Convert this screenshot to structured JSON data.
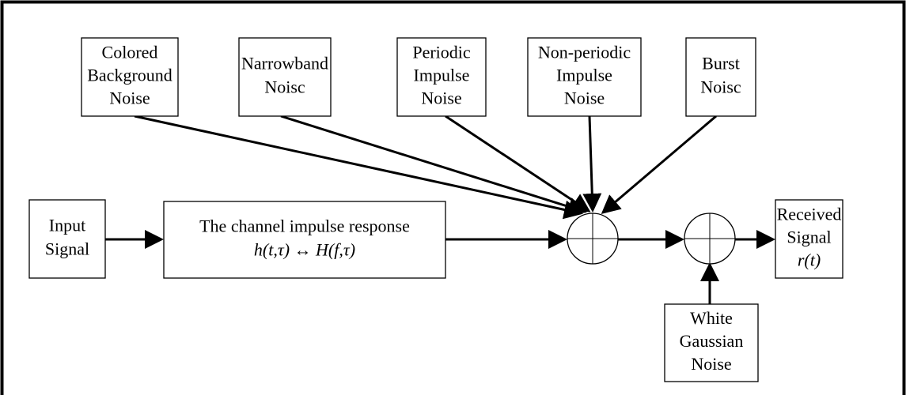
{
  "nodes": [
    {
      "lines": [
        "Colored",
        "Background",
        "Noise"
      ]
    },
    {
      "lines": [
        "Narrowband",
        "Noisc"
      ]
    },
    {
      "lines": [
        "Periodic",
        "Impulse",
        "Noise"
      ]
    },
    {
      "lines": [
        "Non-periodic",
        "Impulse",
        "Noise"
      ]
    },
    {
      "lines": [
        "Burst",
        "Noisc"
      ]
    },
    {
      "lines": [
        "Input",
        "Signal"
      ]
    },
    {
      "lines": [
        "The channel impulse response",
        "h(t,τ) ↔ H(f,τ)"
      ]
    },
    {
      "lines": [
        "Received",
        "Signal",
        "r(t)"
      ]
    },
    {
      "lines": [
        "White",
        "Gaussian",
        "Noise"
      ]
    }
  ]
}
